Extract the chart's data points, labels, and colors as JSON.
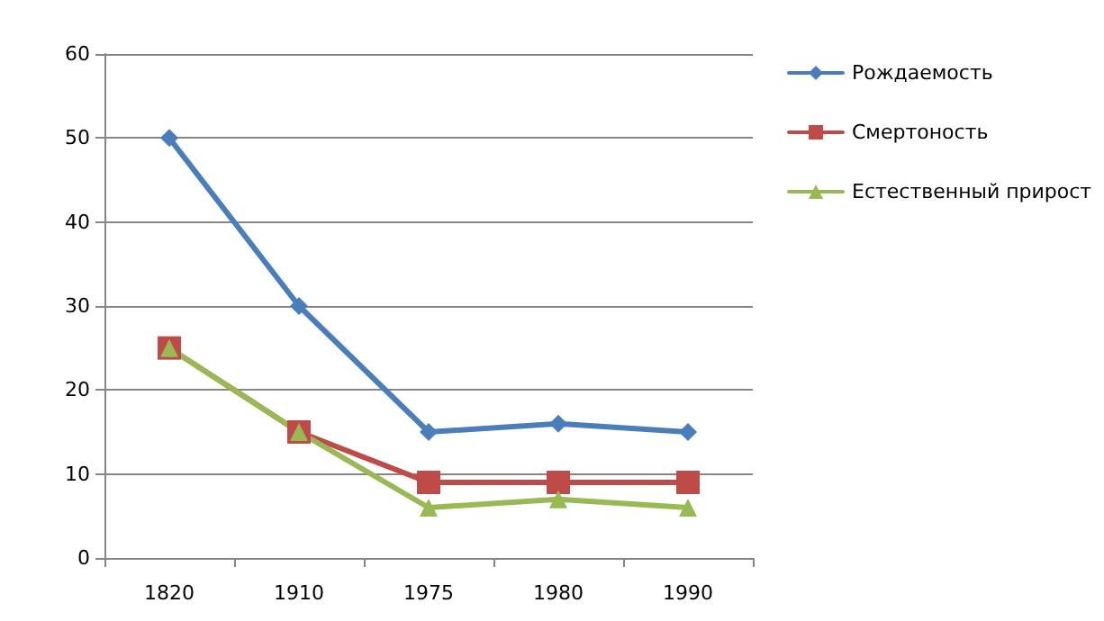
{
  "chart_data": {
    "type": "line",
    "categories": [
      "1820",
      "1910",
      "1975",
      "1980",
      "1990"
    ],
    "series": [
      {
        "name": "Рождаемость",
        "color": "#4a7ebb",
        "marker": "diamond",
        "values": [
          50,
          30,
          15,
          16,
          15
        ]
      },
      {
        "name": "Смертоность",
        "color": "#be4b48",
        "marker": "square",
        "values": [
          25,
          15,
          9,
          9,
          9
        ]
      },
      {
        "name": "Естественный прирост",
        "color": "#98b954",
        "marker": "triangle",
        "values": [
          25,
          15,
          6,
          7,
          6
        ]
      }
    ],
    "ylim": [
      0,
      60
    ],
    "yticks": [
      0,
      10,
      20,
      30,
      40,
      50,
      60
    ],
    "grid": "y",
    "legend": "right",
    "line_style": "solid"
  }
}
